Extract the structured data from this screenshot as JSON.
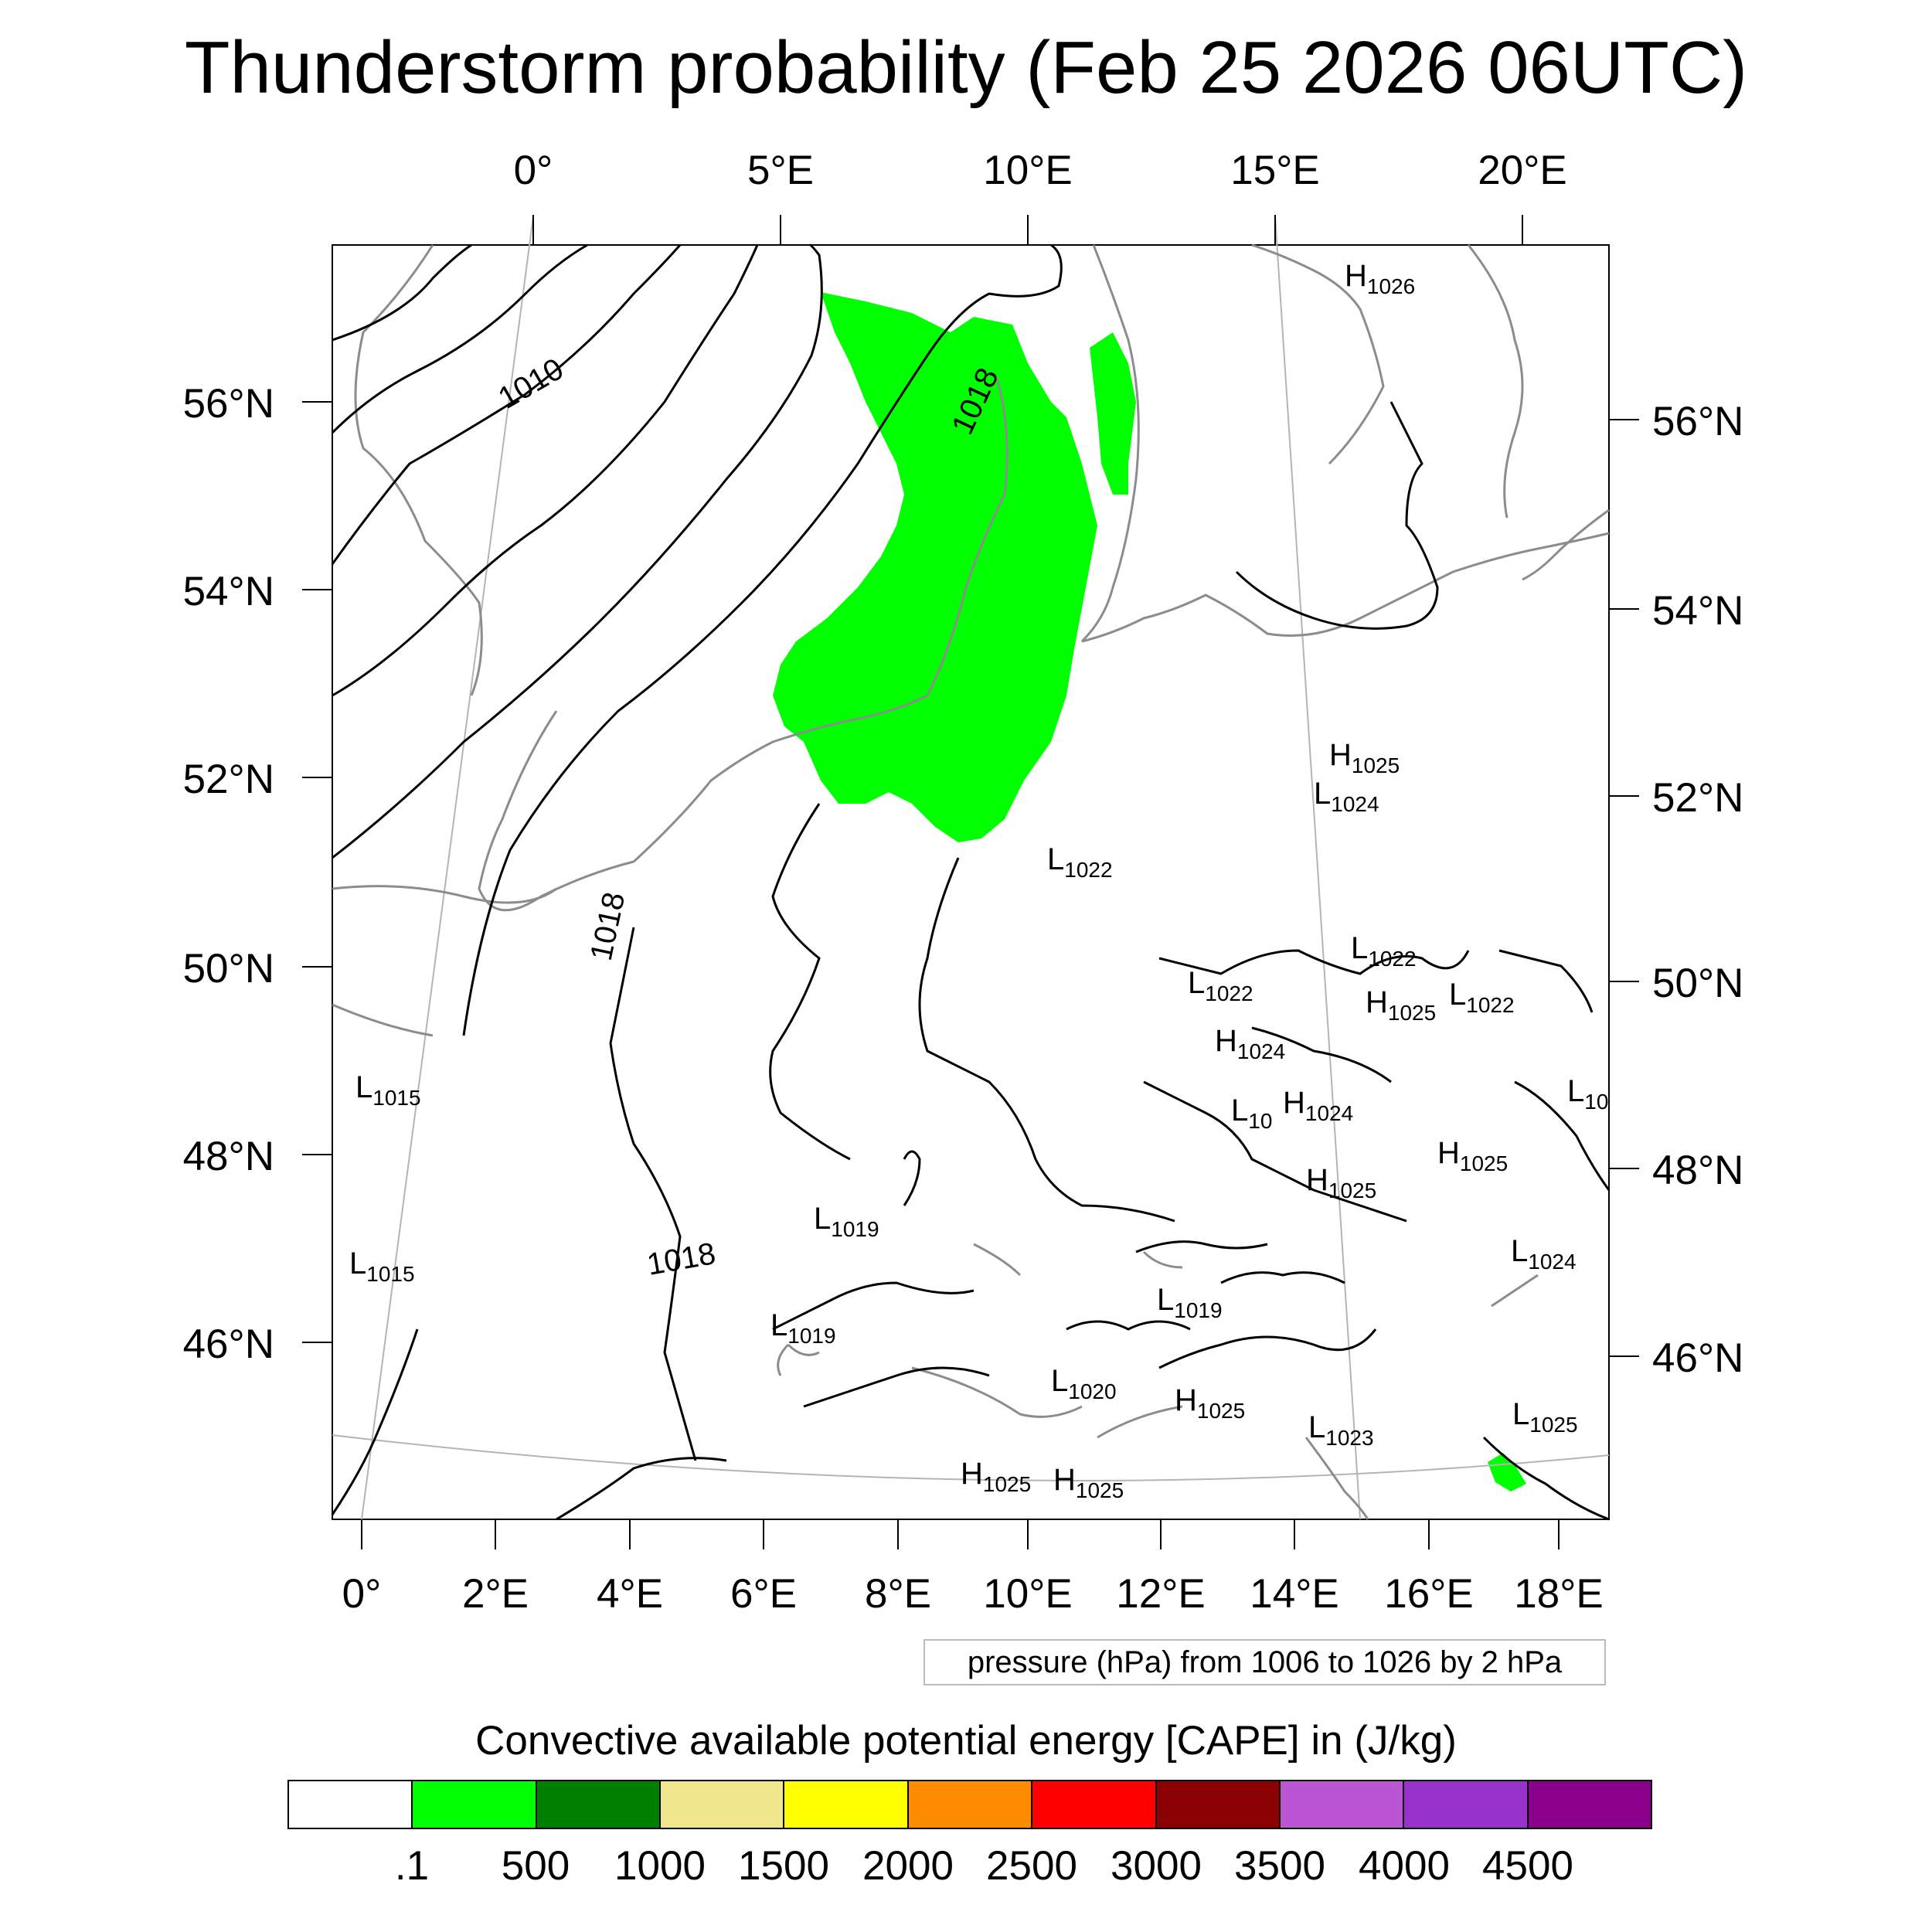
{
  "title": "Thunderstorm probability (Feb 25 2026 06UTC)",
  "map": {
    "top_lon_labels": [
      "0°",
      "5°E",
      "10°E",
      "15°E",
      "20°E"
    ],
    "bottom_lon_labels": [
      "0°",
      "2°E",
      "4°E",
      "6°E",
      "8°E",
      "10°E",
      "12°E",
      "14°E",
      "16°E",
      "18°E"
    ],
    "left_lat_labels": [
      "56°N",
      "54°N",
      "52°N",
      "50°N",
      "48°N",
      "46°N"
    ],
    "right_lat_labels": [
      "56°N",
      "54°N",
      "52°N",
      "50°N",
      "48°N",
      "46°N"
    ],
    "contour_labels": [
      "1010",
      "1018",
      "1018",
      "1018"
    ],
    "pressure_centers": [
      {
        "letter": "H",
        "value": "1026"
      },
      {
        "letter": "H",
        "value": "1025"
      },
      {
        "letter": "L",
        "value": "1024"
      },
      {
        "letter": "L",
        "value": "1022"
      },
      {
        "letter": "L",
        "value": "1022"
      },
      {
        "letter": "L",
        "value": "1022"
      },
      {
        "letter": "H",
        "value": "1025"
      },
      {
        "letter": "L",
        "value": "1022"
      },
      {
        "letter": "H",
        "value": "1024"
      },
      {
        "letter": "L",
        "value": "10"
      },
      {
        "letter": "H",
        "value": "1024"
      },
      {
        "letter": "L",
        "value": "10"
      },
      {
        "letter": "H",
        "value": "1025"
      },
      {
        "letter": "H",
        "value": "1025"
      },
      {
        "letter": "L",
        "value": "1015"
      },
      {
        "letter": "L",
        "value": "1015"
      },
      {
        "letter": "L",
        "value": "1019"
      },
      {
        "letter": "L",
        "value": "1019"
      },
      {
        "letter": "L",
        "value": "1019"
      },
      {
        "letter": "L",
        "value": "1024"
      },
      {
        "letter": "L",
        "value": "1020"
      },
      {
        "letter": "H",
        "value": "1025"
      },
      {
        "letter": "L",
        "value": "1023"
      },
      {
        "letter": "L",
        "value": "1025"
      },
      {
        "letter": "H",
        "value": "1025"
      },
      {
        "letter": "H",
        "value": "1025"
      }
    ],
    "colors": {
      "cape_fill": "#00ff00",
      "coastline": "#8c8c8c",
      "isobar": "#000000",
      "graticule": "#b4b4b4"
    }
  },
  "subtitle": "pressure (hPa) from 1006 to 1026 by 2 hPa",
  "colorbar": {
    "title": "Convective available potential energy [CAPE] in (J/kg)",
    "colors": [
      "#ffffff",
      "#00ff00",
      "#008000",
      "#f0e68c",
      "#ffff00",
      "#ff8c00",
      "#ff0000",
      "#8b0000",
      "#ba55d3",
      "#9932cc",
      "#8b008b"
    ],
    "labels": [
      ".1",
      "500",
      "1000",
      "1500",
      "2000",
      "2500",
      "3000",
      "3500",
      "4000",
      "4500"
    ]
  }
}
